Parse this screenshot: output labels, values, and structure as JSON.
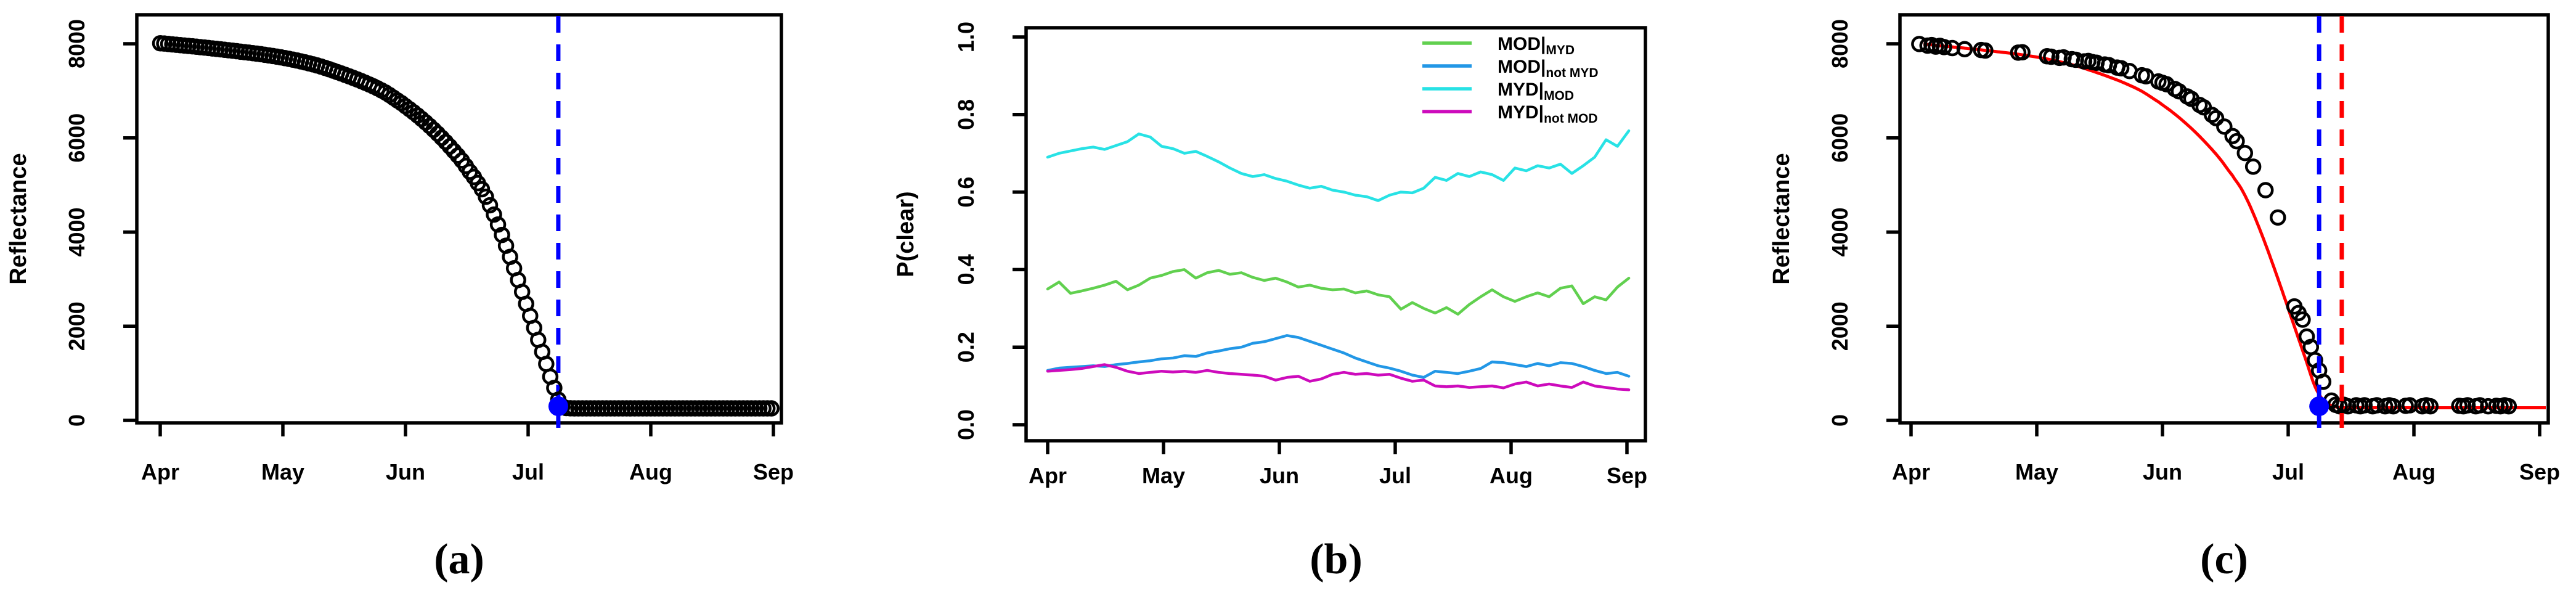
{
  "figure": {
    "background": "#ffffff",
    "description": "Three-panel time-series figure: (a) daily reflectance observations with snowmelt date, (b) clear-sky probabilities for MODIS Terra/Aqua combinations, (c) sparse reflectance observations with fitted curve and estimated date"
  },
  "colors": {
    "marker_black": "#000000",
    "event_blue": "#0000ff",
    "fit_red": "#ff0000",
    "series_green": "#61D04F",
    "series_blue": "#2297E6",
    "series_cyan": "#28E2E5",
    "series_magenta": "#CD0BBC"
  },
  "chart_data": [
    {
      "type": "scatter",
      "panel": "a",
      "caption": "(a)",
      "ylabel": "Reflectance",
      "xlabel": "",
      "x_tick_labels": [
        "Apr",
        "May",
        "Jun",
        "Jul",
        "Aug",
        "Sep"
      ],
      "y_tick_labels": [
        "0",
        "2000",
        "4000",
        "6000",
        "8000"
      ],
      "y_tick_values": [
        0,
        2000,
        4000,
        6000,
        8000
      ],
      "ylim": [
        0,
        8400
      ],
      "x_unit": "days since Apr 1",
      "marker": "open-circle",
      "marker_color": "#000000",
      "sampling": "daily Apr 1 - Aug 31 (values interpolated through anchors)",
      "series_anchors_day_value": [
        [
          0,
          8010
        ],
        [
          4,
          7978
        ],
        [
          8,
          7946
        ],
        [
          12,
          7910
        ],
        [
          16,
          7872
        ],
        [
          20,
          7832
        ],
        [
          24,
          7790
        ],
        [
          28,
          7740
        ],
        [
          32,
          7680
        ],
        [
          36,
          7605
        ],
        [
          40,
          7515
        ],
        [
          44,
          7400
        ],
        [
          48,
          7275
        ],
        [
          52,
          7135
        ],
        [
          56,
          6965
        ],
        [
          60,
          6740
        ],
        [
          63,
          6545
        ],
        [
          66,
          6330
        ],
        [
          69,
          6090
        ],
        [
          72,
          5820
        ],
        [
          75,
          5520
        ],
        [
          78,
          5170
        ],
        [
          80,
          4910
        ],
        [
          82,
          4570
        ],
        [
          84,
          4160
        ],
        [
          86,
          3710
        ],
        [
          88,
          3230
        ],
        [
          90,
          2730
        ],
        [
          92,
          2220
        ],
        [
          94,
          1710
        ],
        [
          96,
          1200
        ],
        [
          98,
          690
        ],
        [
          99,
          440
        ],
        [
          100,
          300
        ],
        [
          101,
          262
        ],
        [
          103,
          256
        ],
        [
          110,
          255
        ],
        [
          125,
          255
        ],
        [
          140,
          255
        ],
        [
          152,
          255
        ]
      ],
      "annotations": {
        "event_line": {
          "day": 99,
          "approx_date": "Jul 9",
          "color": "#0000ff",
          "style": "dashed-vertical"
        },
        "event_dot": {
          "day": 99,
          "value": 300,
          "color": "#0000ff"
        }
      }
    },
    {
      "type": "line",
      "panel": "b",
      "caption": "(b)",
      "ylabel": "P(clear)",
      "xlabel": "",
      "x_tick_labels": [
        "Apr",
        "May",
        "Jun",
        "Jul",
        "Aug",
        "Sep"
      ],
      "y_tick_labels": [
        "0.0",
        "0.2",
        "0.4",
        "0.6",
        "0.8",
        "1.0"
      ],
      "y_tick_values": [
        0.0,
        0.2,
        0.4,
        0.6,
        0.8,
        1.0
      ],
      "ylim": [
        0.0,
        1.0
      ],
      "x_unit": "days since Apr 1",
      "x_days_step": 3,
      "legend_position": "top-right, no box",
      "series": [
        {
          "name": "MOD given MYD",
          "label_main": "MOD|",
          "label_sub": "MYD",
          "color": "#61D04F",
          "values": [
            0.35,
            0.368,
            0.339,
            0.345,
            0.352,
            0.36,
            0.37,
            0.348,
            0.36,
            0.378,
            0.385,
            0.395,
            0.4,
            0.378,
            0.392,
            0.398,
            0.388,
            0.392,
            0.38,
            0.372,
            0.378,
            0.368,
            0.355,
            0.36,
            0.352,
            0.348,
            0.35,
            0.34,
            0.345,
            0.335,
            0.33,
            0.298,
            0.315,
            0.3,
            0.288,
            0.302,
            0.285,
            0.31,
            0.33,
            0.348,
            0.33,
            0.318,
            0.33,
            0.34,
            0.33,
            0.352,
            0.358,
            0.312,
            0.33,
            0.322,
            0.355,
            0.378
          ]
        },
        {
          "name": "MOD given not MYD",
          "label_main": "MOD|",
          "label_sub": "not MYD",
          "color": "#2297E6",
          "values": [
            0.14,
            0.146,
            0.148,
            0.15,
            0.152,
            0.15,
            0.155,
            0.158,
            0.162,
            0.165,
            0.17,
            0.172,
            0.178,
            0.176,
            0.185,
            0.19,
            0.196,
            0.2,
            0.21,
            0.214,
            0.222,
            0.23,
            0.225,
            0.215,
            0.205,
            0.195,
            0.185,
            0.172,
            0.162,
            0.152,
            0.146,
            0.138,
            0.128,
            0.122,
            0.138,
            0.135,
            0.132,
            0.138,
            0.145,
            0.162,
            0.16,
            0.155,
            0.15,
            0.158,
            0.152,
            0.16,
            0.158,
            0.15,
            0.14,
            0.132,
            0.135,
            0.125
          ]
        },
        {
          "name": "MYD given MOD",
          "label_main": "MYD|",
          "label_sub": "MOD",
          "color": "#28E2E5",
          "values": [
            0.69,
            0.7,
            0.706,
            0.712,
            0.716,
            0.71,
            0.72,
            0.73,
            0.75,
            0.742,
            0.718,
            0.712,
            0.7,
            0.705,
            0.692,
            0.678,
            0.662,
            0.648,
            0.64,
            0.645,
            0.635,
            0.628,
            0.618,
            0.61,
            0.615,
            0.605,
            0.6,
            0.592,
            0.588,
            0.578,
            0.592,
            0.6,
            0.598,
            0.61,
            0.638,
            0.63,
            0.648,
            0.64,
            0.652,
            0.645,
            0.63,
            0.662,
            0.655,
            0.668,
            0.662,
            0.672,
            0.648,
            0.668,
            0.69,
            0.735,
            0.718,
            0.758
          ]
        },
        {
          "name": "MYD given not MOD",
          "label_main": "MYD|",
          "label_sub": "not MOD",
          "color": "#CD0BBC",
          "values": [
            0.138,
            0.14,
            0.142,
            0.145,
            0.15,
            0.155,
            0.148,
            0.138,
            0.132,
            0.135,
            0.138,
            0.136,
            0.138,
            0.135,
            0.14,
            0.135,
            0.132,
            0.13,
            0.128,
            0.125,
            0.115,
            0.122,
            0.125,
            0.112,
            0.118,
            0.13,
            0.135,
            0.13,
            0.132,
            0.128,
            0.13,
            0.12,
            0.112,
            0.115,
            0.1,
            0.098,
            0.1,
            0.096,
            0.098,
            0.1,
            0.095,
            0.105,
            0.11,
            0.1,
            0.105,
            0.1,
            0.096,
            0.11,
            0.1,
            0.096,
            0.092,
            0.09
          ]
        }
      ]
    },
    {
      "type": "scatter+line",
      "panel": "c",
      "caption": "(c)",
      "ylabel": "Reflectance",
      "xlabel": "",
      "x_tick_labels": [
        "Apr",
        "May",
        "Jun",
        "Jul",
        "Aug",
        "Sep"
      ],
      "y_tick_labels": [
        "0",
        "2000",
        "4000",
        "6000",
        "8000"
      ],
      "y_tick_values": [
        0,
        2000,
        4000,
        6000,
        8000
      ],
      "ylim": [
        0,
        8400
      ],
      "x_unit": "days since Apr 1",
      "marker": "open-circle",
      "marker_color": "#000000",
      "points_day_value": [
        [
          2,
          7995
        ],
        [
          4,
          7960
        ],
        [
          5,
          7972
        ],
        [
          6,
          7940
        ],
        [
          7,
          7955
        ],
        [
          8,
          7930
        ],
        [
          10,
          7908
        ],
        [
          13,
          7885
        ],
        [
          17,
          7868
        ],
        [
          18,
          7856
        ],
        [
          26,
          7812
        ],
        [
          27,
          7820
        ],
        [
          33,
          7735
        ],
        [
          34,
          7725
        ],
        [
          36,
          7700
        ],
        [
          37,
          7710
        ],
        [
          39,
          7672
        ],
        [
          40,
          7660
        ],
        [
          42,
          7625
        ],
        [
          43,
          7635
        ],
        [
          44,
          7610
        ],
        [
          45,
          7598
        ],
        [
          47,
          7560
        ],
        [
          48,
          7545
        ],
        [
          50,
          7495
        ],
        [
          51,
          7480
        ],
        [
          53,
          7420
        ],
        [
          56,
          7330
        ],
        [
          57,
          7310
        ],
        [
          60,
          7200
        ],
        [
          61,
          7170
        ],
        [
          62,
          7140
        ],
        [
          64,
          7040
        ],
        [
          65,
          6990
        ],
        [
          67,
          6880
        ],
        [
          68,
          6830
        ],
        [
          70,
          6700
        ],
        [
          71,
          6650
        ],
        [
          73,
          6490
        ],
        [
          74,
          6420
        ],
        [
          76,
          6240
        ],
        [
          78,
          6040
        ],
        [
          79,
          5930
        ],
        [
          81,
          5680
        ],
        [
          83,
          5390
        ],
        [
          86,
          4890
        ],
        [
          89,
          4310
        ],
        [
          93,
          2420
        ],
        [
          94,
          2280
        ],
        [
          95,
          2140
        ],
        [
          96,
          1780
        ],
        [
          97,
          1560
        ],
        [
          98,
          1280
        ],
        [
          99,
          1060
        ],
        [
          100,
          820
        ],
        [
          102,
          420
        ],
        [
          103,
          330
        ],
        [
          104,
          300
        ],
        [
          105,
          330
        ],
        [
          106,
          300
        ],
        [
          108,
          320
        ],
        [
          109,
          300
        ],
        [
          110,
          320
        ],
        [
          112,
          300
        ],
        [
          113,
          320
        ],
        [
          115,
          300
        ],
        [
          116,
          320
        ],
        [
          117,
          300
        ],
        [
          120,
          310
        ],
        [
          121,
          320
        ],
        [
          124,
          300
        ],
        [
          125,
          320
        ],
        [
          126,
          300
        ],
        [
          133,
          310
        ],
        [
          134,
          300
        ],
        [
          135,
          320
        ],
        [
          137,
          300
        ],
        [
          138,
          320
        ],
        [
          140,
          300
        ],
        [
          142,
          310
        ],
        [
          143,
          300
        ],
        [
          144,
          320
        ],
        [
          145,
          300
        ]
      ],
      "fit_line": {
        "color": "#ff0000",
        "anchors_day_value": [
          [
            3,
            7992
          ],
          [
            8,
            7950
          ],
          [
            12,
            7916
          ],
          [
            16,
            7880
          ],
          [
            20,
            7840
          ],
          [
            24,
            7800
          ],
          [
            28,
            7752
          ],
          [
            32,
            7694
          ],
          [
            36,
            7620
          ],
          [
            40,
            7532
          ],
          [
            44,
            7420
          ],
          [
            48,
            7296
          ],
          [
            52,
            7158
          ],
          [
            56,
            6990
          ],
          [
            60,
            6768
          ],
          [
            63,
            6575
          ],
          [
            66,
            6360
          ],
          [
            69,
            6120
          ],
          [
            72,
            5850
          ],
          [
            75,
            5550
          ],
          [
            78,
            5200
          ],
          [
            80,
            4940
          ],
          [
            82,
            4600
          ],
          [
            84,
            4190
          ],
          [
            86,
            3740
          ],
          [
            88,
            3260
          ],
          [
            90,
            2760
          ],
          [
            92,
            2250
          ],
          [
            94,
            1740
          ],
          [
            96,
            1230
          ],
          [
            98,
            720
          ],
          [
            100,
            430
          ],
          [
            102,
            315
          ],
          [
            104,
            275
          ],
          [
            107,
            268
          ],
          [
            120,
            268
          ],
          [
            135,
            268
          ],
          [
            154,
            268
          ]
        ]
      },
      "annotations": {
        "event_line_blue": {
          "day": 99,
          "approx_date": "Jul 9",
          "color": "#0000ff",
          "style": "dashed-vertical"
        },
        "event_line_red": {
          "day": 104.5,
          "approx_date": "Jul 14",
          "color": "#ff0000",
          "style": "dashed-vertical"
        },
        "event_dot": {
          "day": 99,
          "value": 300,
          "color": "#0000ff"
        }
      }
    }
  ]
}
